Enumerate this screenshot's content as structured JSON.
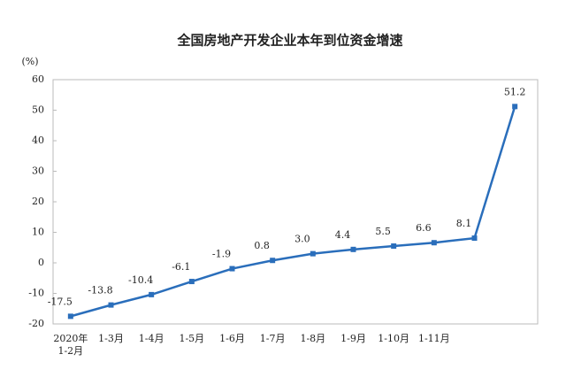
{
  "chart_data": {
    "type": "line",
    "title": "全国房地产开发企业本年到位资金增速",
    "y_unit": "(%)",
    "categories": [
      "2020年\n1-2月",
      "1-3月",
      "1-4月",
      "1-5月",
      "1-6月",
      "1-7月",
      "1-8月",
      "1-9月",
      "1-10月",
      "1-11月",
      null,
      null
    ],
    "values": [
      -17.5,
      -13.8,
      -10.4,
      -6.1,
      -1.9,
      0.8,
      3.0,
      4.4,
      5.5,
      6.6,
      8.1,
      51.2
    ],
    "value_labels": [
      "-17.5",
      "-13.8",
      "-10.4",
      "-6.1",
      "-1.9",
      "0.8",
      "3.0",
      "4.4",
      "5.5",
      "6.6",
      "8.1",
      "51.2"
    ],
    "color": "#2a6ebb",
    "ylim": [
      -20,
      60
    ],
    "yticks": [
      -20,
      -10,
      0,
      10,
      20,
      30,
      40,
      50,
      60
    ]
  }
}
